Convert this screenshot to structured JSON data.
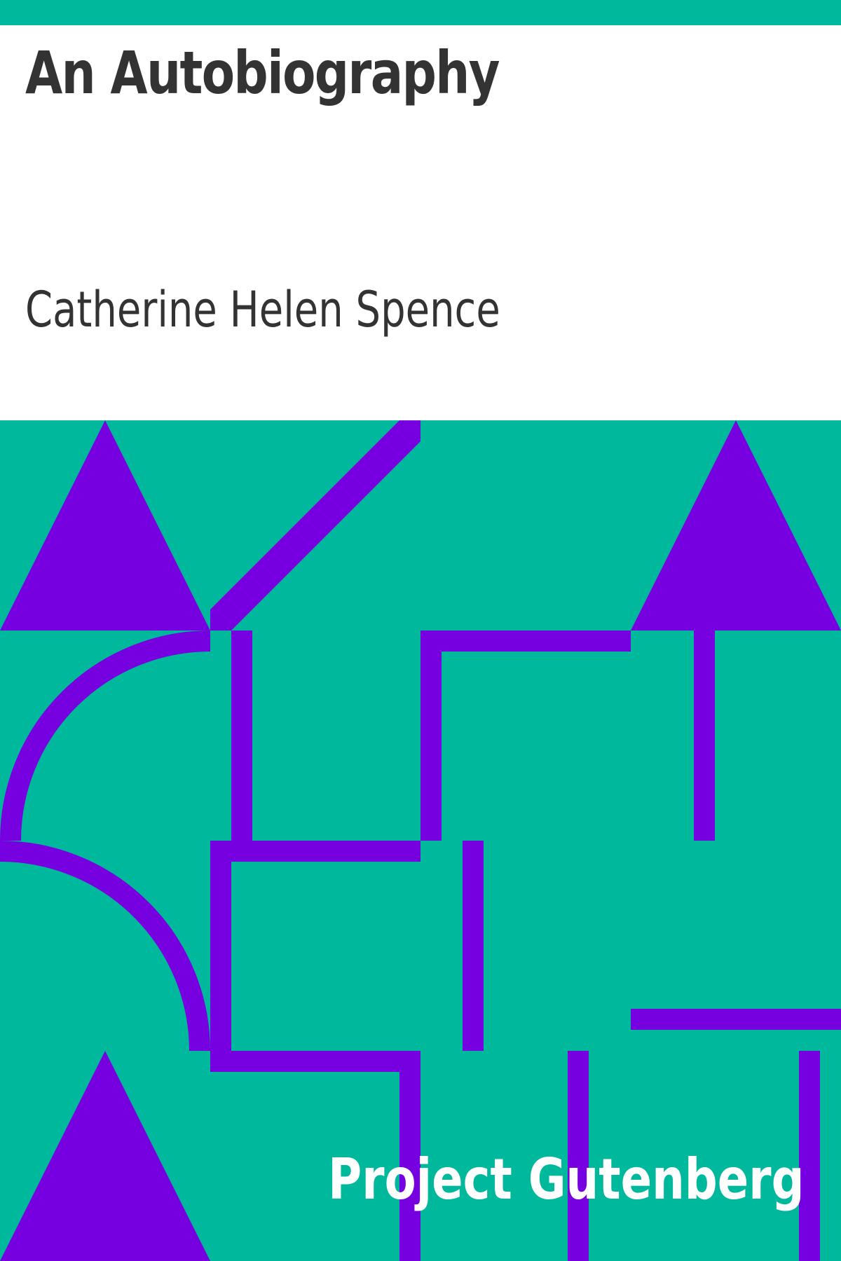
{
  "cover": {
    "title": "An Autobiography",
    "author": "Catherine Helen Spence",
    "publisher": "Project Gutenberg"
  },
  "colors": {
    "background": "#00b89c",
    "panel": "#ffffff",
    "text": "#333333",
    "shapes": "#7700e0",
    "publisher_text": "#ffffff"
  }
}
